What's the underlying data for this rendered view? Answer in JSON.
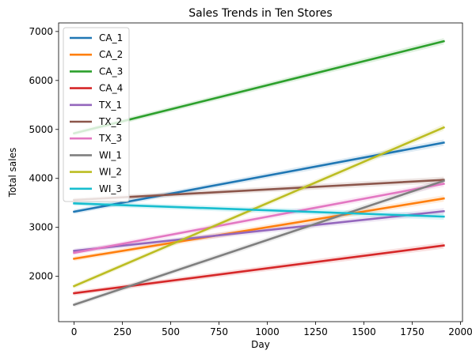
{
  "chart_data": {
    "type": "line",
    "title": "Sales Trends in Ten Stores",
    "xlabel": "Day",
    "ylabel": "Total sales",
    "xlim": [
      -80,
      2010
    ],
    "ylim": [
      1075,
      7175
    ],
    "xticks": [
      0,
      250,
      500,
      750,
      1000,
      1250,
      1500,
      1750,
      2000
    ],
    "yticks": [
      2000,
      3000,
      4000,
      5000,
      6000,
      7000
    ],
    "grid": false,
    "legend_position": "upper-left",
    "series": [
      {
        "name": "CA_1",
        "color": "#1f77b4",
        "x": [
          0,
          1913
        ],
        "y": [
          3320,
          4730
        ]
      },
      {
        "name": "CA_2",
        "color": "#ff7f0e",
        "x": [
          0,
          1913
        ],
        "y": [
          2360,
          3590
        ]
      },
      {
        "name": "CA_3",
        "color": "#2ca02c",
        "x": [
          0,
          1913
        ],
        "y": [
          4920,
          6800
        ]
      },
      {
        "name": "CA_4",
        "color": "#d62728",
        "x": [
          0,
          1913
        ],
        "y": [
          1655,
          2630
        ]
      },
      {
        "name": "TX_1",
        "color": "#9467bd",
        "x": [
          0,
          1913
        ],
        "y": [
          2520,
          3330
        ]
      },
      {
        "name": "TX_2",
        "color": "#8c564b",
        "x": [
          0,
          1913
        ],
        "y": [
          3560,
          3970
        ]
      },
      {
        "name": "TX_3",
        "color": "#e377c2",
        "x": [
          0,
          1913
        ],
        "y": [
          2480,
          3890
        ]
      },
      {
        "name": "WI_1",
        "color": "#7f7f7f",
        "x": [
          0,
          1913
        ],
        "y": [
          1420,
          3950
        ]
      },
      {
        "name": "WI_2",
        "color": "#bcbd22",
        "x": [
          0,
          1913
        ],
        "y": [
          1800,
          5040
        ]
      },
      {
        "name": "WI_3",
        "color": "#17becf",
        "x": [
          0,
          1913
        ],
        "y": [
          3490,
          3220
        ]
      }
    ]
  }
}
